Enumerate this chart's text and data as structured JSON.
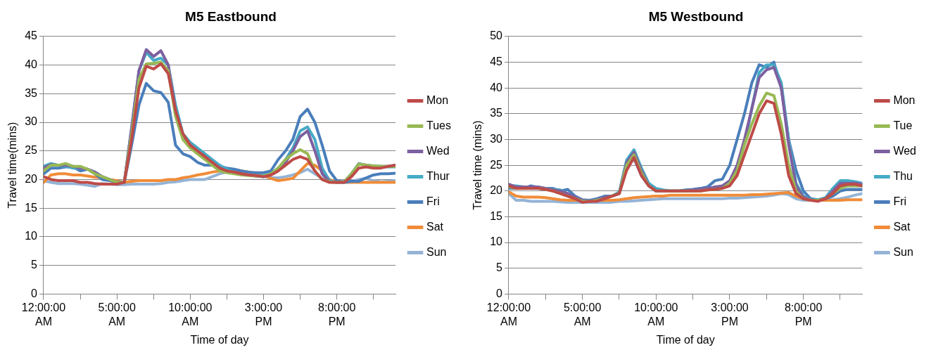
{
  "chart_data": [
    {
      "type": "line",
      "title": "M5 Eastbound",
      "xlabel": "Time of day",
      "ylabel": "Travel time(mins)",
      "legend": "right",
      "grid": "y",
      "marker": "none",
      "line_style": "solid",
      "xlim": [
        0,
        24
      ],
      "xticks": [
        {
          "value": 0,
          "label": "12:00:00 AM"
        },
        {
          "value": 2.5,
          "label": null
        },
        {
          "value": 5,
          "label": "5:00:00 AM"
        },
        {
          "value": 7.5,
          "label": null
        },
        {
          "value": 10,
          "label": "10:00:00 AM"
        },
        {
          "value": 12.5,
          "label": null
        },
        {
          "value": 15,
          "label": "3:00:00 PM"
        },
        {
          "value": 17.5,
          "label": null
        },
        {
          "value": 20,
          "label": "8:00:00 PM"
        },
        {
          "value": 22.5,
          "label": null
        }
      ],
      "ylim": [
        0,
        45
      ],
      "yticks": [
        0,
        5,
        10,
        15,
        20,
        25,
        30,
        35,
        40,
        45
      ],
      "x": [
        0,
        0.5,
        1,
        1.5,
        2,
        2.5,
        3,
        3.5,
        4,
        4.5,
        5,
        5.5,
        6,
        6.5,
        7,
        7.5,
        8,
        8.5,
        9,
        9.5,
        10,
        10.5,
        11,
        11.5,
        12,
        12.5,
        13,
        13.5,
        14,
        14.5,
        15,
        15.5,
        16,
        16.5,
        17,
        17.5,
        18,
        18.5,
        19,
        19.5,
        20,
        20.5,
        21,
        21.5,
        22,
        22.5,
        23,
        23.5,
        24
      ],
      "series": [
        {
          "name": "Mon",
          "color": "#be4b48",
          "values": [
            20.5,
            20,
            19.8,
            19.8,
            19.8,
            19.5,
            19.5,
            19.3,
            19.2,
            19.2,
            19.2,
            19.5,
            27,
            36,
            39.8,
            39.3,
            40.2,
            38.5,
            32,
            28,
            26,
            25,
            24,
            23,
            22,
            21.5,
            21.3,
            21,
            20.8,
            20.7,
            20.5,
            20.8,
            21.5,
            22.5,
            23.5,
            24,
            23.5,
            21.5,
            20,
            19.5,
            19.5,
            19.5,
            20.5,
            22,
            22.2,
            22,
            22,
            22.3,
            22.5
          ]
        },
        {
          "name": "Tues",
          "color": "#98b954",
          "values": [
            21.5,
            22.5,
            22.5,
            22.8,
            22.3,
            22.3,
            21.8,
            21,
            20.5,
            20,
            19.5,
            19.5,
            28,
            37.5,
            40.2,
            40.3,
            40.5,
            39,
            31,
            27,
            25.5,
            24.5,
            23.5,
            22.5,
            21.5,
            21.2,
            21,
            20.8,
            20.7,
            20.6,
            20.6,
            21,
            22,
            23.5,
            24.5,
            25.2,
            24.5,
            21.5,
            20,
            19.6,
            19.5,
            19.6,
            21,
            22.7,
            22.5,
            22.4,
            22.3,
            22.3,
            22.3
          ]
        },
        {
          "name": "Wed",
          "color": "#7d60a0",
          "values": [
            22,
            22.6,
            22.5,
            22.5,
            22.3,
            22,
            21.8,
            21.3,
            20.5,
            20,
            19.5,
            19.5,
            29,
            39,
            42.7,
            41.5,
            42.5,
            40,
            32,
            27.5,
            26,
            25,
            24,
            23,
            22,
            21.5,
            21.2,
            21,
            20.8,
            20.6,
            20.5,
            20.8,
            21.5,
            23,
            25,
            27.5,
            28.5,
            25,
            21,
            19.6,
            19.5,
            19.6,
            21,
            22.7,
            22.5,
            22.3,
            22.3,
            22.3,
            22.5
          ]
        },
        {
          "name": "Thur",
          "color": "#46aac5",
          "values": [
            22.3,
            22.8,
            22.5,
            22.3,
            22,
            22,
            21.8,
            21.3,
            20.5,
            20,
            19.5,
            19.5,
            29,
            39,
            42.2,
            40.8,
            41.2,
            40,
            33,
            28,
            26.5,
            25.5,
            24.5,
            23.5,
            22.5,
            21.8,
            21.3,
            21,
            20.8,
            20.7,
            20.7,
            21,
            22,
            23.5,
            25.5,
            28.5,
            29.2,
            27,
            22,
            19.8,
            19.5,
            19.5,
            21,
            22.8,
            22.5,
            22.4,
            22.3,
            22.2,
            22.2
          ]
        },
        {
          "name": "Fri",
          "color": "#4a7ebb",
          "values": [
            21,
            22,
            22,
            22.2,
            22.2,
            21.5,
            21.8,
            21,
            20,
            19.8,
            19.5,
            19.5,
            26,
            33,
            36.8,
            35.5,
            35.2,
            33.5,
            26,
            24.5,
            24,
            23,
            22.5,
            22.5,
            22.3,
            22,
            21.8,
            21.5,
            21.3,
            21.2,
            21.2,
            21.5,
            23.5,
            25,
            27,
            31,
            32.3,
            30,
            26,
            21.5,
            19.8,
            19.5,
            19.7,
            19.7,
            20.3,
            20.8,
            21,
            21,
            21.1
          ]
        },
        {
          "name": "Sat",
          "color": "#f08c38",
          "values": [
            19.5,
            20.8,
            21,
            21,
            20.8,
            20.8,
            20.6,
            20.4,
            20.3,
            20,
            19.8,
            19.5,
            19.7,
            19.8,
            19.8,
            19.8,
            19.8,
            20,
            20,
            20.3,
            20.5,
            20.8,
            21,
            21.3,
            21.5,
            21.7,
            21.7,
            21.5,
            21.3,
            21,
            20.7,
            20.2,
            19.8,
            20,
            20.2,
            21.5,
            22.8,
            22.5,
            21.5,
            20,
            19.5,
            19.5,
            19.5,
            19.5,
            19.5,
            19.5,
            19.5,
            19.5,
            19.5
          ]
        },
        {
          "name": "Sun",
          "color": "#94b3d6",
          "values": [
            19.8,
            19.5,
            19.3,
            19.3,
            19.3,
            19.2,
            19,
            18.8,
            19.3,
            19.2,
            19.1,
            19.1,
            19.2,
            19.2,
            19.2,
            19.2,
            19.3,
            19.5,
            19.6,
            19.8,
            20,
            20,
            20,
            20.5,
            21,
            21.3,
            21.2,
            null,
            20.8,
            20.6,
            20.5,
            20.3,
            20.3,
            20.5,
            20.8,
            21.2,
            21.8,
            21,
            20.2,
            19.7,
            19.7,
            19.7,
            19.7,
            20,
            20.2,
            19.8,
            19.6,
            19.7,
            19.8
          ]
        }
      ]
    },
    {
      "type": "line",
      "title": "M5 Westbound",
      "xlabel": "Time of day",
      "ylabel": "Travel time (mins)",
      "legend": "right",
      "grid": "y",
      "marker": "none",
      "line_style": "solid",
      "xlim": [
        0,
        24
      ],
      "xticks": [
        {
          "value": 0,
          "label": "12:00:00 AM"
        },
        {
          "value": 2.5,
          "label": null
        },
        {
          "value": 5,
          "label": "5:00:00 AM"
        },
        {
          "value": 7.5,
          "label": null
        },
        {
          "value": 10,
          "label": "10:00:00 AM"
        },
        {
          "value": 12.5,
          "label": null
        },
        {
          "value": 15,
          "label": "3:00:00 PM"
        },
        {
          "value": 17.5,
          "label": null
        },
        {
          "value": 20,
          "label": "8:00:00 PM"
        },
        {
          "value": 22.5,
          "label": null
        }
      ],
      "ylim": [
        0,
        50
      ],
      "yticks": [
        0,
        5,
        10,
        15,
        20,
        25,
        30,
        35,
        40,
        45,
        50
      ],
      "x": [
        0,
        0.5,
        1,
        1.5,
        2,
        2.5,
        3,
        3.5,
        4,
        4.5,
        5,
        5.5,
        6,
        6.5,
        7,
        7.5,
        8,
        8.5,
        9,
        9.5,
        10,
        10.5,
        11,
        11.5,
        12,
        12.5,
        13,
        13.5,
        14,
        14.5,
        15,
        15.5,
        16,
        16.5,
        17,
        17.5,
        18,
        18.5,
        19,
        19.5,
        20,
        20.5,
        21,
        21.5,
        22,
        22.5,
        23,
        23.5,
        24
      ],
      "series": [
        {
          "name": "Mon",
          "color": "#be4b48",
          "values": [
            21,
            20.5,
            20.5,
            20.5,
            20.5,
            20.3,
            20,
            19.5,
            19,
            18.5,
            17.8,
            18,
            18,
            18.5,
            19,
            19.5,
            24,
            26.5,
            23,
            21,
            20,
            20,
            20,
            20,
            20,
            20,
            20,
            20.2,
            20.3,
            20.5,
            21,
            23,
            27,
            31,
            35,
            37.5,
            37,
            31,
            23,
            19.5,
            18.5,
            18.2,
            18,
            18.5,
            19.5,
            21,
            21.3,
            21.3,
            21
          ]
        },
        {
          "name": "Tue",
          "color": "#98b954",
          "values": [
            20.8,
            20.5,
            20.5,
            20.5,
            20.5,
            20.3,
            20,
            19.5,
            19,
            18.5,
            18,
            18,
            18.2,
            18.5,
            19,
            19.5,
            25,
            27,
            23.5,
            21,
            20,
            20,
            20,
            20,
            20,
            20,
            20,
            20.2,
            20.3,
            20.5,
            21.5,
            24,
            29,
            33,
            36.5,
            39,
            38.5,
            33,
            25,
            20,
            18.5,
            18.2,
            18.2,
            18.5,
            19.5,
            20.5,
            21,
            21,
            21
          ]
        },
        {
          "name": "Wed",
          "color": "#7d60a0",
          "values": [
            21.3,
            20.8,
            20.8,
            20.8,
            20.8,
            20.5,
            20.2,
            20,
            19.5,
            18.8,
            18.2,
            18,
            18.3,
            18.8,
            19,
            19.5,
            25.5,
            27.5,
            24,
            21,
            20,
            20,
            20,
            20,
            20,
            20.2,
            20.3,
            20.5,
            20.8,
            21,
            22,
            25,
            30,
            36,
            42,
            43.5,
            44,
            40,
            29,
            21,
            18.8,
            18.2,
            18.2,
            18.5,
            20,
            21.5,
            21.5,
            21.5,
            21.3
          ]
        },
        {
          "name": "Thu",
          "color": "#46aac5",
          "values": [
            21,
            21,
            20.8,
            20.8,
            20.5,
            20.5,
            20.3,
            20.2,
            19.5,
            18.8,
            18.2,
            18,
            18.3,
            18.8,
            19,
            19.8,
            26,
            28,
            24.5,
            21.5,
            20.5,
            20.2,
            20,
            20,
            20,
            20,
            20.2,
            20.3,
            20.5,
            20.8,
            21.5,
            24,
            29,
            36,
            43,
            44.5,
            44.5,
            41,
            30,
            21.5,
            19,
            18.3,
            18.3,
            18.7,
            20.5,
            22,
            22,
            21.8,
            21.5
          ]
        },
        {
          "name": "Fri",
          "color": "#4a7ebb",
          "values": [
            20.5,
            20.5,
            20.5,
            21,
            20.7,
            20.5,
            20.5,
            20,
            20.3,
            19,
            18.3,
            18.2,
            18.5,
            19,
            19,
            19.5,
            24.5,
            26.3,
            23,
            21,
            20,
            20,
            20,
            20,
            20.2,
            20.3,
            20.5,
            20.8,
            22,
            22.3,
            25,
            30,
            35,
            41,
            44.5,
            44,
            45,
            40,
            30,
            24,
            20,
            18.5,
            18.3,
            18.5,
            19,
            20,
            20.3,
            20.3,
            20.3
          ]
        },
        {
          "name": "Sat",
          "color": "#f08c38",
          "values": [
            19.8,
            19,
            18.8,
            18.8,
            18.8,
            18.7,
            18.5,
            18.3,
            18.2,
            18.2,
            18.2,
            18.2,
            18.2,
            18.2,
            18.2,
            18.3,
            18.5,
            18.7,
            18.8,
            18.9,
            19,
            19,
            19.2,
            19.2,
            19.2,
            19.2,
            19.2,
            19.2,
            19.2,
            19.2,
            19.2,
            19.2,
            19.2,
            19.3,
            19.3,
            19.4,
            19.5,
            19.6,
            19.7,
            19,
            18.5,
            18.2,
            18.2,
            18.2,
            18.2,
            18.2,
            18.3,
            18.3,
            18.3
          ]
        },
        {
          "name": "Sun",
          "color": "#94b3d6",
          "values": [
            19.5,
            18.2,
            18.2,
            18,
            18,
            18,
            18,
            17.9,
            17.8,
            17.8,
            17.8,
            17.8,
            17.8,
            17.8,
            17.8,
            18,
            18,
            18.1,
            18.2,
            18.3,
            18.4,
            18.5,
            18.5,
            18.5,
            18.5,
            18.5,
            18.5,
            18.5,
            18.5,
            18.5,
            18.6,
            18.6,
            18.7,
            18.8,
            18.9,
            19,
            19.2,
            19.5,
            19.3,
            18.5,
            18.2,
            18.2,
            18.2,
            18.2,
            18.3,
            18.5,
            18.8,
            19.2,
            19.5
          ]
        }
      ]
    }
  ]
}
